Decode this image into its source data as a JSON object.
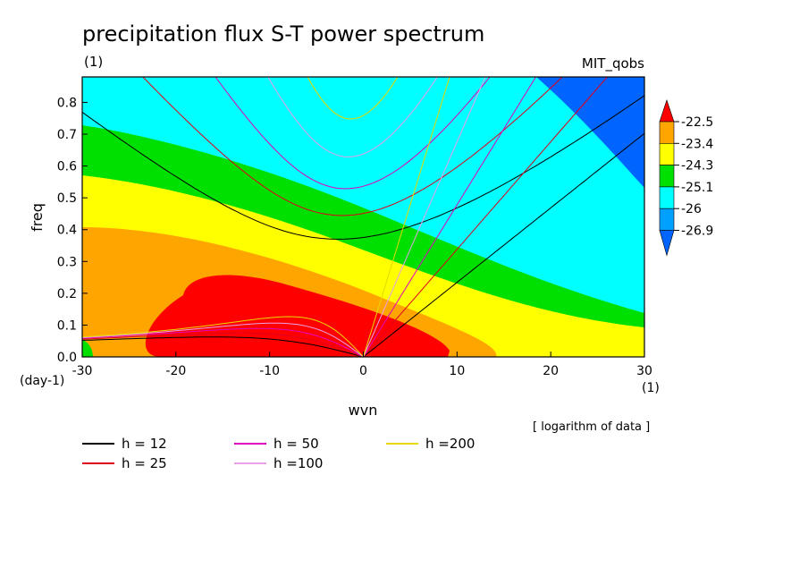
{
  "chart_data": {
    "type": "heatmap",
    "title": "precipitation flux S-T power spectrum",
    "units_label": "(1)",
    "dataset_label": "MIT_qobs",
    "xlabel": "wvn",
    "ylabel": "freq",
    "y_units": "(day-1)",
    "x_units": "(1)",
    "note": "[ logarithm of data ]",
    "xlim": [
      -30,
      30
    ],
    "ylim": [
      0,
      0.88
    ],
    "x_ticks": [
      "-30",
      "-20",
      "-10",
      "0",
      "10",
      "20",
      "30"
    ],
    "y_ticks": [
      "0.0",
      "0.1",
      "0.2",
      "0.3",
      "0.4",
      "0.5",
      "0.6",
      "0.7",
      "0.8"
    ],
    "colorbar": {
      "labels": [
        "-22.5",
        "-23.4",
        "-24.3",
        "-25.1",
        "-26",
        "-26.9"
      ],
      "colors": [
        "#ff0000",
        "#ffa500",
        "#ffff00",
        "#00e000",
        "#00ffff",
        "#00a0ff",
        "#0064ff"
      ]
    },
    "dispersion_curves": [
      {
        "label": "h = 12",
        "color": "#000000",
        "h": 12
      },
      {
        "label": "h = 25",
        "color": "#e0001c",
        "h": 25
      },
      {
        "label": "h = 50",
        "color": "#e000c0",
        "h": 50
      },
      {
        "label": "h =100",
        "color": "#e8a0e8",
        "h": 100
      },
      {
        "label": "h =200",
        "color": "#e8d800",
        "h": 200
      }
    ]
  }
}
